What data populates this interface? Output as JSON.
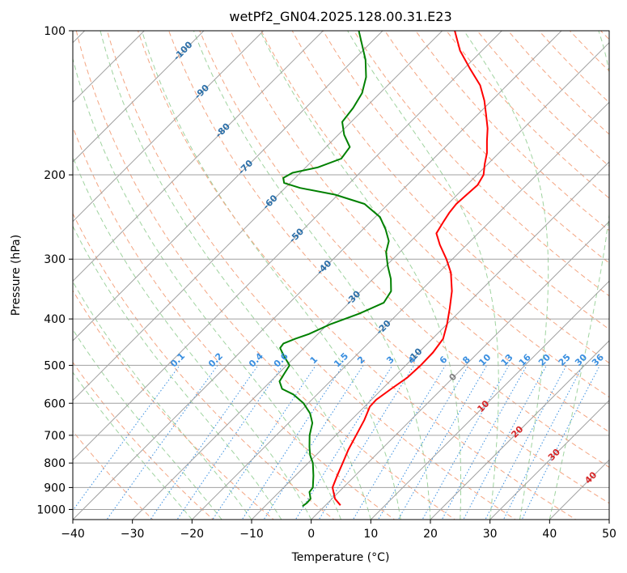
{
  "chart_data": {
    "type": "line",
    "chart_kind": "skew-t log-p",
    "title": "wetPf2_GN04.2025.128.00.31.E23",
    "xlabel": "Temperature (°C)",
    "ylabel": "Pressure (hPa)",
    "xlim": [
      -40,
      50
    ],
    "ylim": [
      1050,
      100
    ],
    "y_scale": "log",
    "grid": true,
    "x_ticks": [
      -40,
      -30,
      -20,
      -10,
      0,
      10,
      20,
      30,
      40,
      50
    ],
    "y_ticks": [
      100,
      200,
      300,
      400,
      500,
      600,
      700,
      800,
      900,
      1000
    ],
    "colors": {
      "temperature": "#ff0000",
      "dewpoint": "#008000",
      "isotherms": "#a0a0a0",
      "isobars": "#a0a0a0",
      "dry_adiabats": "#f4a582",
      "moist_adiabats": "#9fd39f",
      "mixing_ratio": "#3a8fe0",
      "label_blue": "#2c6fa8",
      "label_red": "#d62728",
      "label_gray": "#808080",
      "label_mixing": "#3a8fe0"
    },
    "series": [
      {
        "role": "temperature",
        "color": "#ff0000",
        "points": [
          {
            "p": 980,
            "t": 2.5
          },
          {
            "p": 950,
            "t": 0.5
          },
          {
            "p": 900,
            "t": -1.8
          },
          {
            "p": 850,
            "t": -3.0
          },
          {
            "p": 800,
            "t": -4.2
          },
          {
            "p": 750,
            "t": -5.5
          },
          {
            "p": 700,
            "t": -6.6
          },
          {
            "p": 650,
            "t": -7.8
          },
          {
            "p": 610,
            "t": -9.1
          },
          {
            "p": 590,
            "t": -9.2
          },
          {
            "p": 560,
            "t": -8.5
          },
          {
            "p": 530,
            "t": -7.7
          },
          {
            "p": 500,
            "t": -7.5
          },
          {
            "p": 470,
            "t": -7.6
          },
          {
            "p": 440,
            "t": -8.2
          },
          {
            "p": 410,
            "t": -10.0
          },
          {
            "p": 380,
            "t": -12.2
          },
          {
            "p": 350,
            "t": -14.7
          },
          {
            "p": 320,
            "t": -18.0
          },
          {
            "p": 300,
            "t": -21.0
          },
          {
            "p": 280,
            "t": -24.5
          },
          {
            "p": 265,
            "t": -27.0
          },
          {
            "p": 250,
            "t": -27.8
          },
          {
            "p": 240,
            "t": -28.3
          },
          {
            "p": 230,
            "t": -28.6
          },
          {
            "p": 220,
            "t": -28.4
          },
          {
            "p": 210,
            "t": -28.2
          },
          {
            "p": 200,
            "t": -28.9
          },
          {
            "p": 190,
            "t": -30.5
          },
          {
            "p": 180,
            "t": -32.0
          },
          {
            "p": 170,
            "t": -34.0
          },
          {
            "p": 160,
            "t": -36.0
          },
          {
            "p": 150,
            "t": -38.5
          },
          {
            "p": 140,
            "t": -41.2
          },
          {
            "p": 130,
            "t": -44.5
          },
          {
            "p": 120,
            "t": -49.0
          },
          {
            "p": 110,
            "t": -53.7
          },
          {
            "p": 100,
            "t": -57.9
          }
        ]
      },
      {
        "role": "dewpoint",
        "color": "#008000",
        "points": [
          {
            "p": 985,
            "t": -3.7
          },
          {
            "p": 970,
            "t": -3.5
          },
          {
            "p": 950,
            "t": -3.6
          },
          {
            "p": 920,
            "t": -4.9
          },
          {
            "p": 900,
            "t": -5.1
          },
          {
            "p": 850,
            "t": -7.0
          },
          {
            "p": 800,
            "t": -9.2
          },
          {
            "p": 770,
            "t": -11.0
          },
          {
            "p": 740,
            "t": -12.5
          },
          {
            "p": 700,
            "t": -14.4
          },
          {
            "p": 660,
            "t": -16.0
          },
          {
            "p": 630,
            "t": -18.0
          },
          {
            "p": 600,
            "t": -20.8
          },
          {
            "p": 575,
            "t": -24.0
          },
          {
            "p": 560,
            "t": -26.8
          },
          {
            "p": 540,
            "t": -28.5
          },
          {
            "p": 520,
            "t": -29.0
          },
          {
            "p": 500,
            "t": -29.5
          },
          {
            "p": 480,
            "t": -31.8
          },
          {
            "p": 460,
            "t": -34.0
          },
          {
            "p": 450,
            "t": -34.2
          },
          {
            "p": 440,
            "t": -33.0
          },
          {
            "p": 430,
            "t": -31.5
          },
          {
            "p": 410,
            "t": -29.5
          },
          {
            "p": 390,
            "t": -26.5
          },
          {
            "p": 370,
            "t": -24.2
          },
          {
            "p": 350,
            "t": -24.9
          },
          {
            "p": 330,
            "t": -27.0
          },
          {
            "p": 310,
            "t": -29.7
          },
          {
            "p": 290,
            "t": -32.3
          },
          {
            "p": 275,
            "t": -33.7
          },
          {
            "p": 260,
            "t": -36.2
          },
          {
            "p": 245,
            "t": -39.2
          },
          {
            "p": 230,
            "t": -44.0
          },
          {
            "p": 220,
            "t": -50.5
          },
          {
            "p": 213,
            "t": -57.5
          },
          {
            "p": 208,
            "t": -61.0
          },
          {
            "p": 203,
            "t": -62.0
          },
          {
            "p": 198,
            "t": -61.3
          },
          {
            "p": 193,
            "t": -58.0
          },
          {
            "p": 185,
            "t": -55.5
          },
          {
            "p": 175,
            "t": -56.0
          },
          {
            "p": 165,
            "t": -59.0
          },
          {
            "p": 155,
            "t": -61.5
          },
          {
            "p": 145,
            "t": -62.0
          },
          {
            "p": 135,
            "t": -63.0
          },
          {
            "p": 125,
            "t": -65.0
          },
          {
            "p": 115,
            "t": -68.0
          },
          {
            "p": 100,
            "t": -74.0
          }
        ]
      }
    ],
    "isotherm_labels": [
      {
        "t": -100,
        "label": "-100"
      },
      {
        "t": -90,
        "label": "-90"
      },
      {
        "t": -80,
        "label": "-80"
      },
      {
        "t": -70,
        "label": "-70"
      },
      {
        "t": -60,
        "label": "-60"
      },
      {
        "t": -50,
        "label": "-50"
      },
      {
        "t": -40,
        "label": "-40"
      },
      {
        "t": -30,
        "label": "-30"
      },
      {
        "t": -20,
        "label": "-20"
      },
      {
        "t": -10,
        "label": "-10"
      }
    ],
    "zero_label": "0",
    "red_isotherm_labels": [
      "10",
      "20",
      "30",
      "40"
    ],
    "mixing_ratio_labels": [
      "0.1",
      "0.2",
      "0.4",
      "0.6",
      "1",
      "1.5",
      "2",
      "3",
      "4",
      "6",
      "8",
      "10",
      "13",
      "16",
      "20",
      "25",
      "30",
      "36"
    ]
  }
}
